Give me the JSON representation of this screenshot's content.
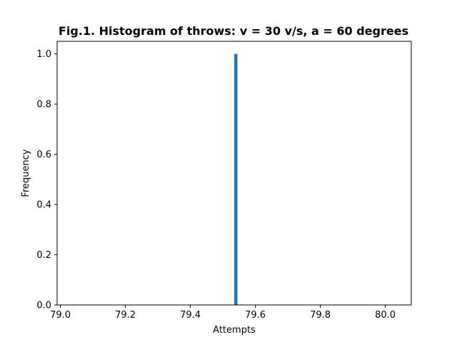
{
  "chart_data": {
    "type": "bar",
    "title": "Fig.1. Histogram of throws: v = 30 v/s, a = 60 degrees",
    "xlabel": "Attempts",
    "ylabel": "Frequency",
    "xlim": [
      78.99,
      80.08
    ],
    "ylim": [
      0,
      1.05
    ],
    "x_ticks": [
      "79.0",
      "79.2",
      "79.4",
      "79.6",
      "79.8",
      "80.0"
    ],
    "y_ticks": [
      "0.0",
      "0.2",
      "0.4",
      "0.6",
      "0.8",
      "1.0"
    ],
    "bars": [
      {
        "x": 79.54,
        "width": 0.01,
        "value": 1.0
      }
    ],
    "bar_color": "#1f77b4",
    "grid": false,
    "legend": "none"
  }
}
